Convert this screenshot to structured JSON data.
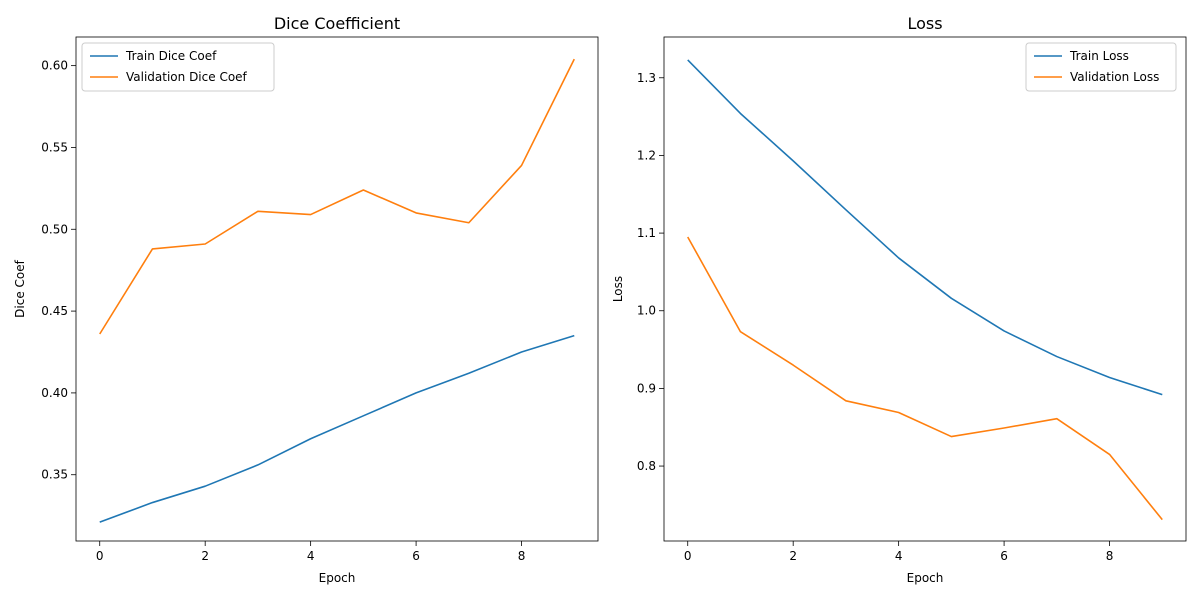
{
  "chart_data": [
    {
      "type": "line",
      "title": "Dice Coefficient",
      "xlabel": "Epoch",
      "ylabel": "Dice Coef",
      "x": [
        0,
        1,
        2,
        3,
        4,
        5,
        6,
        7,
        8,
        9
      ],
      "xlim": [
        -0.45,
        9.45
      ],
      "ylim": [
        0.3095,
        0.6175
      ],
      "xticks": [
        0,
        2,
        4,
        6,
        8
      ],
      "xtick_labels": [
        "0",
        "2",
        "4",
        "6",
        "8"
      ],
      "yticks": [
        0.35,
        0.4,
        0.45,
        0.5,
        0.55,
        0.6
      ],
      "ytick_labels": [
        "0.35",
        "0.40",
        "0.45",
        "0.50",
        "0.55",
        "0.60"
      ],
      "legend_position": "top-left",
      "grid": false,
      "series": [
        {
          "name": "Train Dice Coef",
          "color": "#1f77b4",
          "values": [
            0.321,
            0.333,
            0.343,
            0.356,
            0.372,
            0.386,
            0.4,
            0.412,
            0.425,
            0.435
          ]
        },
        {
          "name": "Validation Dice Coef",
          "color": "#ff7f0e",
          "values": [
            0.436,
            0.488,
            0.491,
            0.511,
            0.509,
            0.524,
            0.51,
            0.504,
            0.539,
            0.604
          ]
        }
      ]
    },
    {
      "type": "line",
      "title": "Loss",
      "xlabel": "Epoch",
      "ylabel": "Loss",
      "x": [
        0,
        1,
        2,
        3,
        4,
        5,
        6,
        7,
        8,
        9
      ],
      "xlim": [
        -0.45,
        9.45
      ],
      "ylim": [
        0.7035,
        1.3525
      ],
      "xticks": [
        0,
        2,
        4,
        6,
        8
      ],
      "xtick_labels": [
        "0",
        "2",
        "4",
        "6",
        "8"
      ],
      "yticks": [
        0.8,
        0.9,
        1.0,
        1.1,
        1.2,
        1.3
      ],
      "ytick_labels": [
        "0.8",
        "0.9",
        "1.0",
        "1.1",
        "1.2",
        "1.3"
      ],
      "legend_position": "top-right",
      "grid": false,
      "series": [
        {
          "name": "Train Loss",
          "color": "#1f77b4",
          "values": [
            1.323,
            1.254,
            1.193,
            1.13,
            1.068,
            1.016,
            0.974,
            0.941,
            0.914,
            0.892
          ]
        },
        {
          "name": "Validation Loss",
          "color": "#ff7f0e",
          "values": [
            1.095,
            0.973,
            0.93,
            0.884,
            0.869,
            0.838,
            0.849,
            0.861,
            0.815,
            0.731
          ]
        }
      ]
    }
  ]
}
